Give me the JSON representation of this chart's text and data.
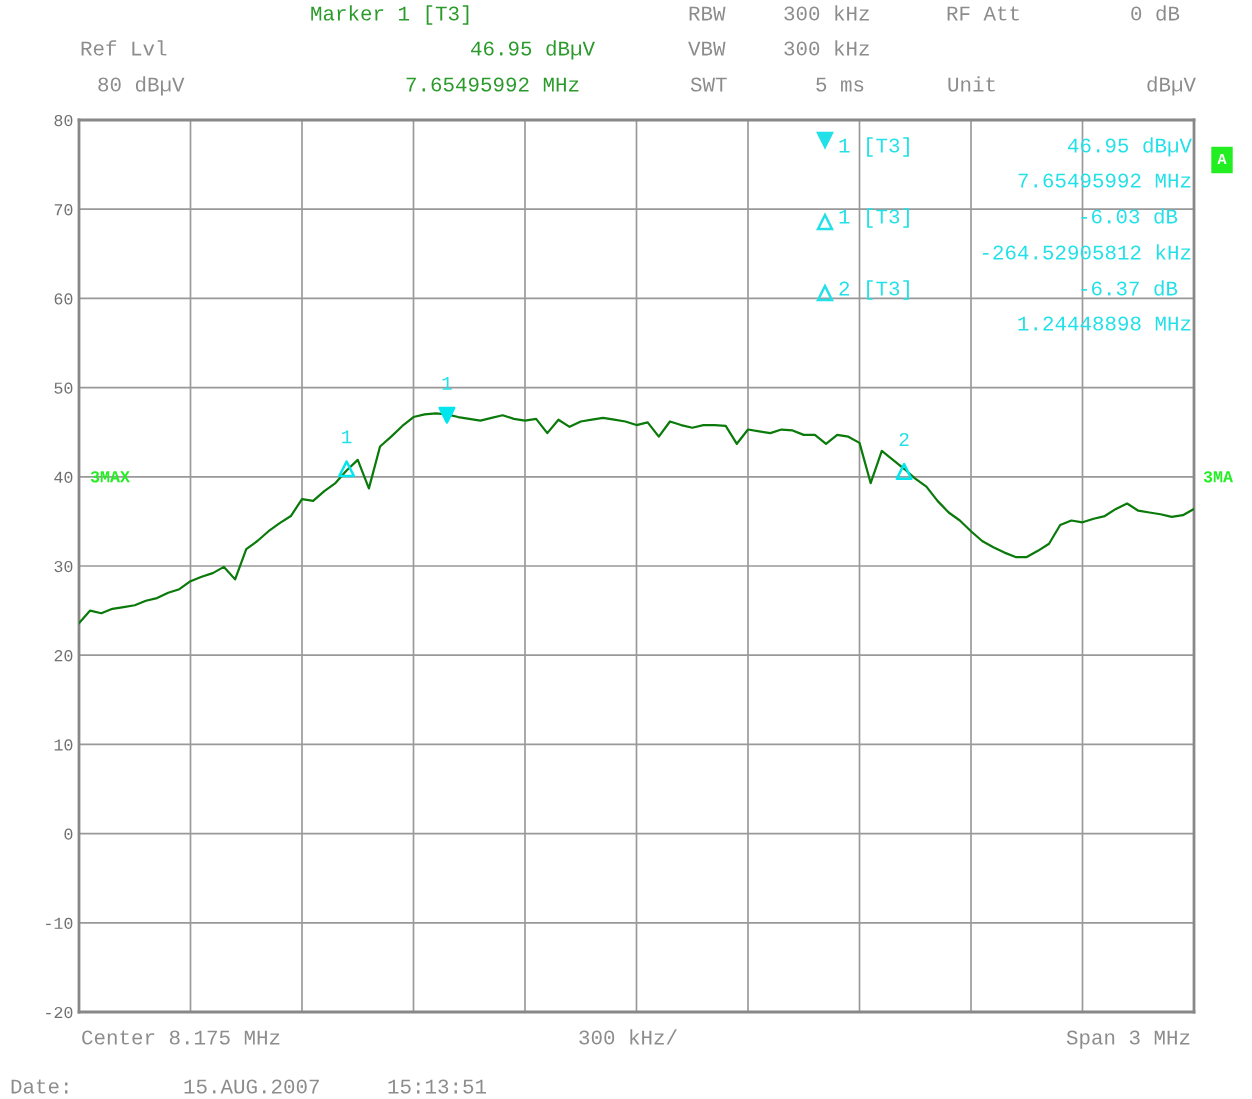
{
  "chart_data": {
    "type": "line",
    "categories": [
      null,
      null,
      null,
      null,
      null,
      null,
      null,
      null,
      null,
      null,
      null,
      null,
      null,
      null,
      null,
      null,
      null,
      null,
      null,
      null,
      null,
      null,
      null,
      null,
      null,
      null,
      null,
      null,
      null,
      null,
      null,
      null,
      null,
      null,
      null,
      null,
      null,
      null,
      null,
      null,
      null,
      null,
      null,
      null,
      null,
      null,
      null,
      null,
      null,
      null,
      null,
      null,
      null,
      null,
      null,
      null,
      null,
      null,
      null,
      null,
      null,
      null,
      null,
      null,
      null,
      null,
      null,
      null,
      null,
      null,
      null,
      null,
      null,
      null,
      null,
      null,
      null,
      null,
      null,
      null,
      null,
      null,
      null,
      null,
      null,
      null,
      null,
      null,
      null,
      null,
      null,
      null,
      null,
      null,
      null,
      null,
      null,
      null,
      null,
      null,
      null
    ],
    "series": [
      {
        "color": "#0a7a0a",
        "marker": "none",
        "line_style": "solid",
        "values": [
          23.6,
          25,
          24.7,
          25.2,
          25.4,
          25.6,
          26.1,
          26.4,
          27,
          27.4,
          28.3,
          28.8,
          29.2,
          29.9,
          28.5,
          31.9,
          32.8,
          33.9,
          34.8,
          35.6,
          37.5,
          37.3,
          38.4,
          39.3,
          40.7,
          41.9,
          38.7,
          43.4,
          44.5,
          45.7,
          46.7,
          47,
          47.1,
          47,
          46.7,
          46.5,
          46.3,
          46.6,
          46.9,
          46.5,
          46.3,
          46.5,
          44.9,
          46.4,
          45.6,
          46.2,
          46.4,
          46.6,
          46.4,
          46.2,
          45.8,
          46.1,
          44.5,
          46.2,
          45.8,
          45.5,
          45.8,
          45.8,
          45.7,
          43.7,
          45.3,
          45.1,
          44.9,
          45.3,
          45.2,
          44.7,
          44.7,
          43.7,
          44.7,
          44.5,
          43.8,
          39.3,
          42.9,
          41.9,
          40.9,
          39.8,
          38.9,
          37.3,
          36,
          35.1,
          33.9,
          32.8,
          32.1,
          31.5,
          31,
          31,
          31.7,
          32.5,
          34.6,
          35.1,
          34.9,
          35.3,
          35.6,
          36.4,
          37,
          36.2,
          36,
          35.8,
          35.5,
          35.7,
          36.4
        ]
      },
      {
        "type": "scatter",
        "color": "#00e5ee",
        "marker": "triangle",
        "values": [
          null,
          null,
          null,
          null,
          null,
          null,
          null,
          null,
          null,
          null,
          null,
          null,
          null,
          null,
          null,
          null,
          null,
          null,
          null,
          null,
          null,
          null,
          null,
          null,
          null,
          null,
          null,
          null,
          null,
          null,
          null,
          null,
          null,
          46.9,
          null,
          null,
          null,
          null,
          null,
          null,
          null,
          null,
          null,
          null,
          null,
          null,
          null,
          null,
          null,
          null,
          null,
          null,
          null,
          null,
          null,
          null,
          null,
          null,
          null,
          null,
          null,
          null,
          null,
          null,
          null,
          null,
          null,
          null,
          null,
          null,
          null,
          null,
          null,
          null,
          null,
          null,
          null,
          null,
          null,
          null,
          null,
          null,
          null,
          null,
          null,
          null,
          null,
          null,
          null,
          null,
          null,
          null,
          null,
          null,
          null,
          null,
          null,
          null,
          null,
          null,
          null
        ]
      },
      {
        "type": "scatter",
        "color": "#00e5ee",
        "marker": "triangle",
        "values": [
          null,
          null,
          null,
          null,
          null,
          null,
          null,
          null,
          null,
          null,
          null,
          null,
          null,
          null,
          null,
          null,
          null,
          null,
          null,
          null,
          null,
          null,
          null,
          null,
          40.9,
          null,
          null,
          null,
          null,
          null,
          null,
          null,
          null,
          null,
          null,
          null,
          null,
          null,
          null,
          null,
          null,
          null,
          null,
          null,
          null,
          null,
          null,
          null,
          null,
          null,
          null,
          null,
          null,
          null,
          null,
          null,
          null,
          null,
          null,
          null,
          null,
          null,
          null,
          null,
          null,
          null,
          null,
          null,
          null,
          null,
          null,
          null,
          null,
          null,
          40.6,
          null,
          null,
          null,
          null,
          null,
          null,
          null,
          null,
          null,
          null,
          null,
          null,
          null,
          null,
          null,
          null,
          null,
          null,
          null,
          null,
          null,
          null,
          null,
          null,
          null,
          null
        ]
      }
    ],
    "ylim": [
      -20,
      80
    ],
    "yticks": [
      -20,
      -10,
      0,
      10,
      20,
      30,
      40,
      50,
      60,
      70,
      80
    ],
    "grid": true,
    "tick_labels": "y",
    "annotations": [
      "Marker 1 [T3]",
      "Ref Lvl",
      "46.95 dBµV",
      "80 dBµV",
      "7.65495992 MHz",
      "RBW",
      "300 kHz",
      "RF Att",
      "0 dB",
      "VBW",
      "300 kHz",
      "SWT",
      "5 ms",
      "Unit",
      "dBµV",
      "1 [T3]",
      "46.95 dBµV",
      "7.65495992 MHz",
      "1 [T3]",
      "-6.03 dB",
      "-264.52905812 kHz",
      "2 [T3]",
      "-6.37 dB",
      "1.24448898 MHz",
      "3MAX",
      "3MA",
      "A",
      "Center 8.175 MHz",
      "300 kHz/",
      "Span 3 MHz",
      "Date:",
      "15.AUG.2007",
      "15:13:51",
      "1",
      "1",
      "2"
    ]
  }
}
